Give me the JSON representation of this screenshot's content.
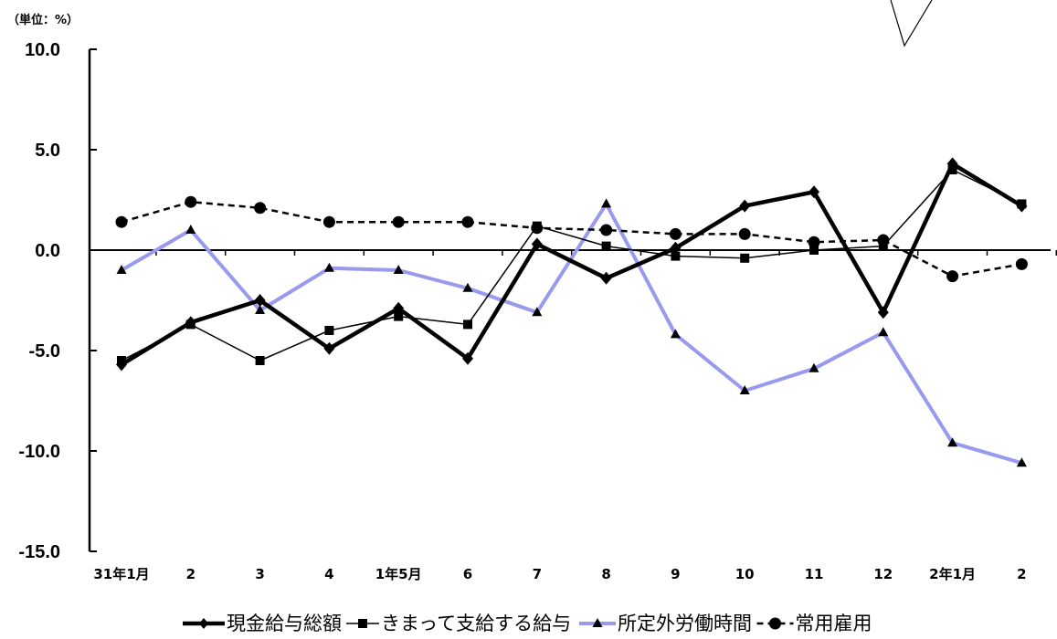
{
  "chart_data": {
    "type": "line",
    "unit_label": "（単位：%）",
    "categories": [
      "31年1月",
      "2",
      "3",
      "4",
      "1年5月",
      "6",
      "7",
      "8",
      "9",
      "10",
      "11",
      "12",
      "2年1月",
      "2"
    ],
    "ylim": [
      -15,
      10
    ],
    "yticks": [
      10,
      5,
      0,
      -5,
      -10,
      -15
    ],
    "ytick_labels": [
      "10.0",
      "5.0",
      "0.0",
      "-5.0",
      "-10.0",
      "-15.0"
    ],
    "grid": false,
    "legend_position": "bottom",
    "series": [
      {
        "name": "現金給与総額",
        "values": [
          -5.7,
          -3.6,
          -2.5,
          -4.9,
          -2.9,
          -5.4,
          0.3,
          -1.4,
          0.1,
          2.2,
          2.9,
          -3.1,
          4.3,
          2.2
        ],
        "color": "#000000",
        "marker": "diamond",
        "style": "solid-thick"
      },
      {
        "name": "きまって支給する給与",
        "values": [
          -5.5,
          -3.7,
          -5.5,
          -4.0,
          -3.3,
          -3.7,
          1.2,
          0.2,
          -0.3,
          -0.4,
          0.0,
          0.2,
          4.0,
          2.3
        ],
        "color": "#000000",
        "marker": "square",
        "style": "solid-thin"
      },
      {
        "name": "所定外労働時間",
        "values": [
          -1.0,
          1.0,
          -3.0,
          -0.9,
          -1.0,
          -1.9,
          -3.1,
          2.3,
          -4.2,
          -7.0,
          -5.9,
          -4.1,
          -9.6,
          -10.6
        ],
        "color": "#9999ee",
        "marker": "triangle",
        "style": "solid-thick"
      },
      {
        "name": "常用雇用",
        "values": [
          1.4,
          2.4,
          2.1,
          1.4,
          1.4,
          1.4,
          1.1,
          1.0,
          0.8,
          0.8,
          0.4,
          0.5,
          -1.3,
          -0.7
        ],
        "color": "#000000",
        "marker": "circle",
        "style": "dashed"
      }
    ]
  }
}
